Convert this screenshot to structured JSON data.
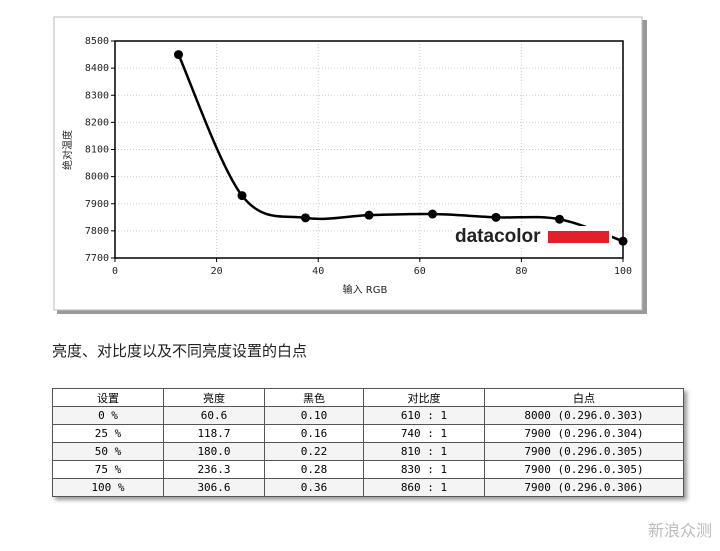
{
  "chart_data": {
    "type": "line",
    "x_label": "输入 RGB",
    "y_label": "绝对温度",
    "x": [
      12.5,
      25,
      37.5,
      50,
      62.5,
      75,
      87.5,
      100
    ],
    "series": [
      {
        "color": "#000000",
        "values": [
          8450,
          7930,
          7848,
          7858,
          7862,
          7850,
          7843,
          7762
        ]
      }
    ],
    "xlim": [
      0,
      100
    ],
    "xticks": [
      0,
      20,
      40,
      60,
      80,
      100
    ],
    "ylim": [
      7700,
      8500
    ],
    "yticks": [
      7700,
      7800,
      7900,
      8000,
      8100,
      8200,
      8300,
      8400,
      8500
    ],
    "grid": true,
    "logo": "datacolor"
  },
  "section_title": "亮度、对比度以及不同亮度设置的白点",
  "table": {
    "header": [
      "设置",
      "亮度",
      "黑色",
      "对比度",
      "白点"
    ],
    "rows": [
      [
        "0 %",
        "60.6",
        "0.10",
        "610 : 1",
        "8000 (0.296.0.303)"
      ],
      [
        "25 %",
        "118.7",
        "0.16",
        "740 : 1",
        "7900 (0.296.0.304)"
      ],
      [
        "50 %",
        "180.0",
        "0.22",
        "810 : 1",
        "7900 (0.296.0.305)"
      ],
      [
        "75 %",
        "236.3",
        "0.28",
        "830 : 1",
        "7900 (0.296.0.305)"
      ],
      [
        "100 %",
        "306.6",
        "0.36",
        "860 : 1",
        "7900 (0.296.0.306)"
      ]
    ]
  },
  "watermark": "新浪众测"
}
